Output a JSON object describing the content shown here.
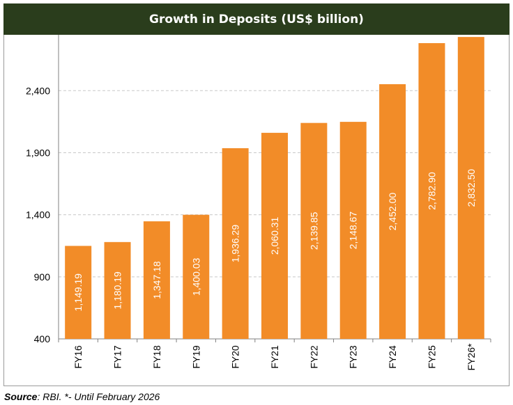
{
  "chart_data": {
    "type": "bar",
    "title": "Growth in Deposits (US$ billion)",
    "categories": [
      "FY16",
      "FY17",
      "FY18",
      "FY19",
      "FY20",
      "FY21",
      "FY22",
      "FY23",
      "FY24",
      "FY25",
      "FY26*"
    ],
    "values": [
      1149.19,
      1180.19,
      1347.18,
      1400.03,
      1936.29,
      2060.31,
      2139.85,
      2148.67,
      2452.0,
      2782.9,
      2832.5
    ],
    "data_labels": [
      "1,149.19",
      "1,180.19",
      "1,347.18",
      "1,400.03",
      "1,936.29",
      "2,060.31",
      "2,139.85",
      "2,148.67",
      "2,452.00",
      "2,782.90",
      "2,832.50"
    ],
    "yticks": [
      "400",
      "900",
      "1,400",
      "1,900",
      "2,400"
    ],
    "ylim": [
      400,
      2850
    ],
    "grid": true,
    "bar_color": "#f28c28"
  },
  "source": {
    "label": "Source",
    "text": ": RBI. *- Until February 2026"
  }
}
